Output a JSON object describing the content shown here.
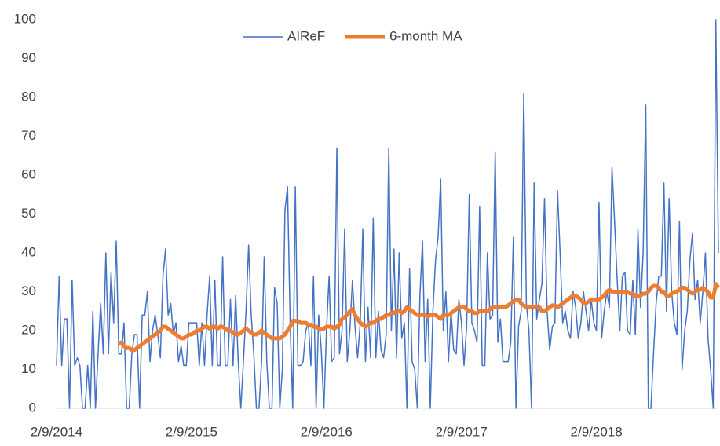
{
  "chart_data": {
    "type": "line",
    "categories": [
      "2/9/2014",
      null,
      null,
      null,
      null,
      null,
      null,
      null,
      null,
      null,
      null,
      null,
      null,
      null,
      null,
      null,
      null,
      null,
      null,
      null,
      null,
      null,
      null,
      null,
      null,
      null,
      null,
      null,
      null,
      null,
      null,
      null,
      null,
      null,
      null,
      null,
      null,
      null,
      null,
      null,
      null,
      null,
      null,
      null,
      null,
      null,
      null,
      null,
      null,
      null,
      null,
      null,
      "2/9/2015",
      null,
      null,
      null,
      null,
      null,
      null,
      null,
      null,
      null,
      null,
      null,
      null,
      null,
      null,
      null,
      null,
      null,
      null,
      null,
      null,
      null,
      null,
      null,
      null,
      null,
      null,
      null,
      null,
      null,
      null,
      null,
      null,
      null,
      null,
      null,
      null,
      null,
      null,
      null,
      null,
      null,
      null,
      null,
      null,
      null,
      null,
      null,
      null,
      null,
      null,
      null,
      "2/9/2016",
      null,
      null,
      null,
      null,
      null,
      null,
      null,
      null,
      null,
      null,
      null,
      null,
      null,
      null,
      null,
      null,
      null,
      null,
      null,
      null,
      null,
      null,
      null,
      null,
      null,
      null,
      null,
      null,
      null,
      null,
      null,
      null,
      null,
      null,
      null,
      null,
      null,
      null,
      null,
      null,
      null,
      null,
      null,
      null,
      null,
      null,
      null,
      null,
      null,
      null,
      null,
      "2/9/2017",
      null,
      null,
      null,
      null,
      null,
      null,
      null,
      null,
      null,
      null,
      null,
      null,
      null,
      null,
      null,
      null,
      null,
      null,
      null,
      null,
      null,
      null,
      null,
      null,
      null,
      null,
      null,
      null,
      null,
      null,
      null,
      null,
      null,
      null,
      null,
      null,
      null,
      null,
      null,
      null,
      null,
      null,
      null,
      null,
      null,
      null,
      null,
      null,
      null,
      null,
      null,
      "2/9/2018",
      null,
      null,
      null,
      null,
      null,
      null,
      null,
      null,
      null,
      null,
      null,
      null,
      null,
      null,
      null,
      null,
      null,
      null,
      null,
      null,
      null,
      null,
      null,
      null,
      null,
      null,
      null,
      null,
      null,
      null,
      null,
      null,
      null,
      null,
      null,
      null,
      null,
      null,
      null,
      null,
      null,
      null,
      null,
      null,
      null,
      null,
      null
    ],
    "series": [
      {
        "name": "AIReF",
        "color": "#4472c4",
        "width": 1.5,
        "values": [
          11,
          34,
          11,
          23,
          23,
          0,
          33,
          11,
          13,
          11,
          0,
          0,
          11,
          0,
          25,
          0,
          14,
          27,
          14,
          40,
          14,
          35,
          22,
          43,
          14,
          14,
          22,
          0,
          0,
          14,
          19,
          19,
          0,
          24,
          24,
          30,
          12,
          20,
          24,
          19,
          13,
          34,
          41,
          24,
          27,
          19,
          22,
          12,
          16,
          11,
          11,
          22,
          22,
          22,
          22,
          11,
          22,
          11,
          24,
          34,
          11,
          33,
          11,
          11,
          39,
          11,
          11,
          28,
          11,
          29,
          12,
          0,
          12,
          25,
          42,
          24,
          14,
          0,
          0,
          12,
          39,
          12,
          0,
          0,
          31,
          27,
          0,
          10,
          51,
          57,
          22,
          0,
          57,
          11,
          11,
          12,
          20,
          22,
          11,
          34,
          0,
          24,
          15,
          0,
          20,
          34,
          12,
          13,
          67,
          14,
          20,
          46,
          12,
          20,
          33,
          21,
          13,
          22,
          46,
          12,
          26,
          13,
          49,
          13,
          25,
          15,
          13,
          19,
          67,
          20,
          41,
          13,
          40,
          18,
          22,
          0,
          36,
          12,
          10,
          0,
          29,
          43,
          12,
          28,
          0,
          25,
          38,
          44,
          59,
          20,
          30,
          12,
          25,
          15,
          14,
          28,
          22,
          11,
          21,
          55,
          22,
          20,
          17,
          52,
          11,
          11,
          40,
          23,
          24,
          66,
          17,
          23,
          12,
          12,
          12,
          17,
          44,
          0,
          21,
          25,
          81,
          27,
          20,
          0,
          58,
          23,
          28,
          32,
          54,
          25,
          15,
          21,
          22,
          56,
          40,
          22,
          25,
          20,
          18,
          30,
          26,
          18,
          22,
          30,
          25,
          20,
          28,
          22,
          20,
          53,
          18,
          25,
          30,
          26,
          62,
          48,
          33,
          20,
          34,
          35,
          20,
          19,
          33,
          19,
          46,
          26,
          40,
          78,
          0,
          0,
          14,
          27,
          34,
          34,
          58,
          25,
          54,
          30,
          22,
          19,
          48,
          10,
          20,
          25,
          38,
          45,
          28,
          33,
          22,
          30,
          40,
          18,
          10,
          0,
          100,
          40
        ]
      },
      {
        "name": "6-month MA",
        "color": "#ed7d31",
        "width": 5,
        "values": [
          null,
          null,
          null,
          null,
          null,
          null,
          null,
          null,
          null,
          null,
          null,
          null,
          null,
          null,
          null,
          null,
          null,
          null,
          null,
          null,
          null,
          null,
          null,
          null,
          16.5,
          17,
          16,
          15.5,
          15.5,
          15,
          15,
          15.5,
          16,
          16.5,
          17,
          17.5,
          18,
          18.5,
          19,
          19.5,
          20,
          21,
          21,
          20.5,
          20,
          19.5,
          19,
          18.5,
          18,
          18,
          18.5,
          19,
          19,
          19.5,
          20,
          20,
          20.5,
          21,
          21,
          20.5,
          21,
          21,
          20.5,
          21,
          21,
          20.5,
          20,
          20,
          19.5,
          19,
          19,
          19.5,
          20,
          20.5,
          20,
          19.5,
          19,
          19,
          19.5,
          20,
          19.5,
          19,
          18.5,
          18,
          18,
          18,
          18,
          18.5,
          19,
          20,
          21,
          22.5,
          22.5,
          22.5,
          22,
          22,
          22,
          21.5,
          21.5,
          21,
          21,
          20.5,
          20.5,
          20.5,
          21,
          21,
          21,
          20.5,
          21,
          21.5,
          23,
          23.5,
          24,
          25,
          25.5,
          24,
          23,
          22,
          21.5,
          21,
          21.5,
          22,
          22,
          22.5,
          23,
          23,
          23.5,
          24,
          24,
          24.5,
          24.5,
          25,
          25,
          24.5,
          25,
          26,
          25.5,
          25,
          24.5,
          24,
          24,
          24,
          24,
          23.5,
          24,
          24,
          24,
          23.5,
          23,
          24,
          24,
          24,
          24.5,
          25,
          25.5,
          26,
          26,
          26,
          25.5,
          25,
          25,
          24.5,
          24.5,
          25,
          25,
          25,
          25,
          25.5,
          26,
          26,
          26,
          26,
          26,
          26,
          26.5,
          27,
          27.5,
          28,
          28,
          27,
          26.5,
          26,
          26,
          26,
          26,
          26,
          26,
          25,
          25,
          25.5,
          26,
          26.5,
          26.5,
          26,
          26.5,
          27,
          27.5,
          28,
          28.5,
          29,
          29,
          28.5,
          28,
          27,
          27,
          27.5,
          28,
          28,
          28,
          28,
          28.5,
          29,
          30,
          30.5,
          30,
          30,
          30,
          30,
          30,
          30,
          30,
          29.5,
          29.5,
          29,
          29,
          29,
          29.5,
          29.5,
          30,
          31,
          31.5,
          31.5,
          31,
          30,
          30,
          29,
          29,
          29.5,
          30,
          30,
          30.5,
          31,
          31,
          30.5,
          30,
          29.5,
          30,
          30.5,
          30.5,
          31,
          30.5,
          30,
          28.5,
          28.5,
          32,
          31
        ]
      }
    ],
    "ylim": [
      0,
      100
    ],
    "yticks": [
      0,
      10,
      20,
      30,
      40,
      50,
      60,
      70,
      80,
      90,
      100
    ],
    "grid": false,
    "legend": "top"
  }
}
